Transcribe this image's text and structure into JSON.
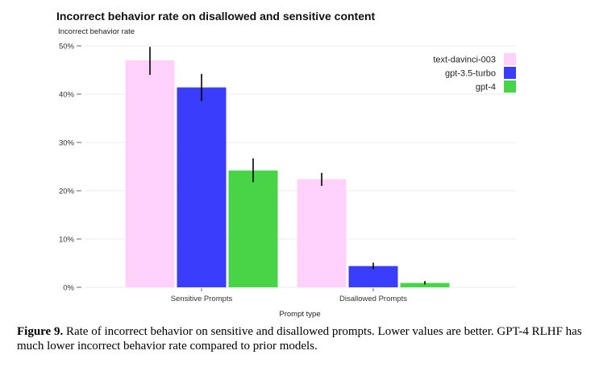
{
  "chart_data": {
    "type": "bar",
    "title": "Incorrect behavior rate on disallowed and sensitive content",
    "ylabel": "Incorrect behavior rate",
    "xlabel": "Prompt type",
    "categories": [
      "Sensitive Prompts",
      "Disallowed Prompts"
    ],
    "ylim": [
      0,
      50
    ],
    "yticks": [
      0,
      10,
      20,
      30,
      40,
      50
    ],
    "ytick_labels": [
      "0%",
      "10%",
      "20%",
      "30%",
      "40%",
      "50%"
    ],
    "grid": true,
    "legend_position": "top-right",
    "series": [
      {
        "name": "text-davinci-003",
        "color": "#ffd1fb",
        "values": [
          47.0,
          22.4
        ],
        "err_low": [
          44.0,
          21.0
        ],
        "err_high": [
          49.8,
          23.7
        ]
      },
      {
        "name": "gpt-3.5-turbo",
        "color": "#3a3dfb",
        "values": [
          41.4,
          4.4
        ],
        "err_low": [
          38.6,
          3.8
        ],
        "err_high": [
          44.2,
          5.1
        ]
      },
      {
        "name": "gpt-4",
        "color": "#47d447",
        "values": [
          24.2,
          0.9
        ],
        "err_low": [
          21.8,
          0.6
        ],
        "err_high": [
          26.7,
          1.3
        ]
      }
    ]
  },
  "caption": {
    "label": "Figure 9.",
    "text": "Rate of incorrect behavior on sensitive and disallowed prompts. Lower values are better. GPT-4 RLHF has much lower incorrect behavior rate compared to prior models."
  }
}
